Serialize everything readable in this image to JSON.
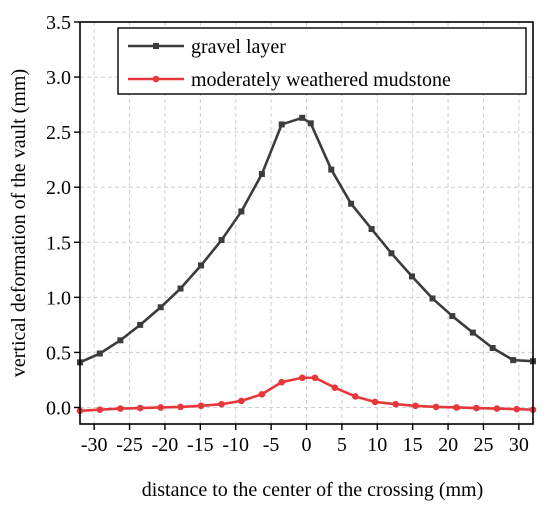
{
  "chart_data": {
    "type": "line",
    "xlabel": "distance to the center of the crossing (mm)",
    "ylabel": "vertical deformation of the vault (mm)",
    "xlim": [
      -32,
      32
    ],
    "ylim": [
      -0.15,
      3.5
    ],
    "x_ticks": [
      -30,
      -25,
      -20,
      -15,
      -10,
      -5,
      0,
      5,
      10,
      15,
      20,
      25,
      30
    ],
    "x_tick_labels": [
      "-30",
      "-25",
      "-20",
      "-15",
      "-10",
      "-5",
      "0",
      "5",
      "10",
      "15",
      "20",
      "25",
      "30"
    ],
    "y_ticks": [
      0.0,
      0.5,
      1.0,
      1.5,
      2.0,
      2.5,
      3.0,
      3.5
    ],
    "y_tick_labels": [
      "0.0",
      "0.5",
      "1.0",
      "1.5",
      "2.0",
      "2.5",
      "3.0",
      "3.5"
    ],
    "grid": true,
    "legend_position": "top-right",
    "series": [
      {
        "name": "gravel layer",
        "color": "#3c3c3c",
        "marker": "square",
        "x": [
          -32,
          -29.2,
          -26.3,
          -23.5,
          -20.6,
          -17.8,
          -14.9,
          -12.0,
          -9.2,
          -6.3,
          -3.5,
          -0.6,
          0.6,
          3.5,
          6.3,
          9.2,
          12.0,
          14.9,
          17.8,
          20.6,
          23.5,
          26.3,
          29.2,
          32
        ],
        "values": [
          0.41,
          0.49,
          0.61,
          0.75,
          0.91,
          1.08,
          1.29,
          1.52,
          1.78,
          2.12,
          2.57,
          2.63,
          2.58,
          2.16,
          1.85,
          1.62,
          1.4,
          1.19,
          0.99,
          0.83,
          0.68,
          0.54,
          0.43,
          0.42
        ]
      },
      {
        "name": "moderately weathered mudstone",
        "color": "#e8373a",
        "marker": "circle",
        "x": [
          -32,
          -29.2,
          -26.3,
          -23.5,
          -20.6,
          -17.8,
          -14.9,
          -12.0,
          -9.2,
          -6.3,
          -3.5,
          -0.6,
          1.2,
          4.0,
          6.9,
          9.7,
          12.6,
          15.4,
          18.3,
          21.2,
          24.0,
          26.9,
          29.7,
          32
        ],
        "values": [
          -0.03,
          -0.02,
          -0.01,
          -0.005,
          0.0,
          0.005,
          0.015,
          0.03,
          0.06,
          0.12,
          0.23,
          0.27,
          0.27,
          0.18,
          0.1,
          0.05,
          0.03,
          0.015,
          0.005,
          0.0,
          -0.005,
          -0.01,
          -0.015,
          -0.02
        ]
      }
    ]
  }
}
